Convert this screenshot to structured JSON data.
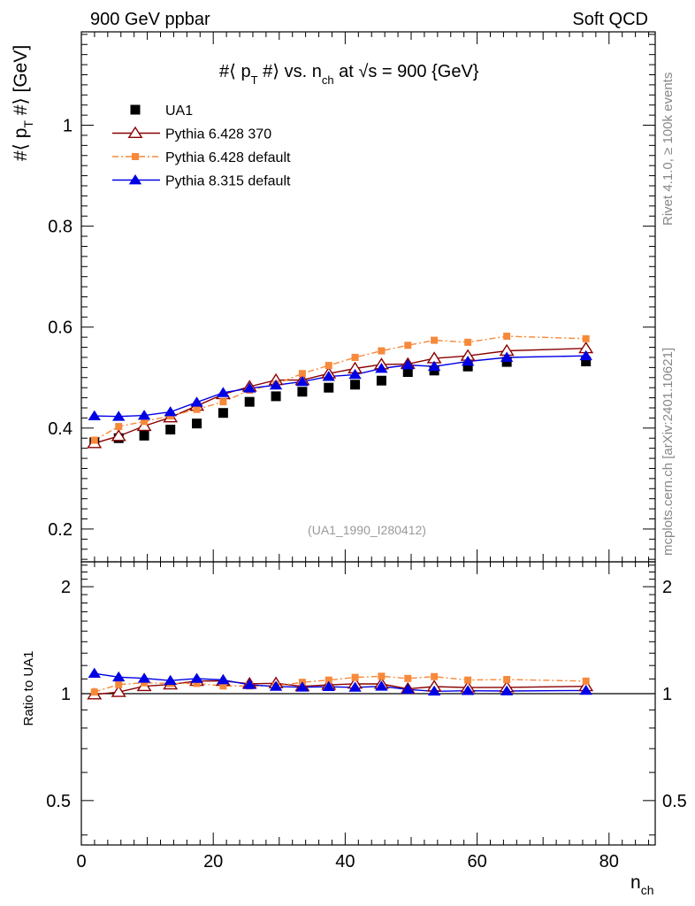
{
  "header": {
    "left": "900 GeV ppbar",
    "right": "Soft QCD"
  },
  "side_labels": {
    "rivet": "Rivet 4.1.0, ≥ 100k events",
    "mcplots": "mcplots.cern.ch [arXiv:2401.10621]"
  },
  "chart_data": {
    "type": "line",
    "title": "#⟨ p_T #⟩ vs. n_ch at √s = 900 {GeV}",
    "title_parts": {
      "a": "#⟨ p",
      "b": "T",
      "c": " #⟩ vs. n",
      "d": "ch",
      "e": " at ",
      "f": "√",
      "g": "s = 900 {GeV}"
    },
    "ylabel_parts": {
      "a": "#⟨ p",
      "b": "T",
      "c": " #⟩ [GeV]"
    },
    "xlabel_parts": {
      "a": "n",
      "b": "ch"
    },
    "ratio_ylabel": "Ratio to UA1",
    "watermark": "(UA1_1990_I280412)",
    "xlim": [
      0,
      87
    ],
    "ylim": [
      0.135,
      1.185
    ],
    "ratio_ylim": [
      0.375,
      2.35
    ],
    "x_ticks": [
      0,
      20,
      40,
      60,
      80
    ],
    "y_ticks": [
      0.2,
      0.4,
      0.6,
      0.8,
      1
    ],
    "ratio_ticks": [
      0.5,
      1,
      2
    ],
    "x": [
      1.98,
      5.66,
      9.53,
      13.5,
      17.5,
      21.5,
      25.5,
      29.5,
      33.5,
      37.5,
      41.5,
      45.5,
      49.5,
      53.5,
      58.6,
      64.5,
      76.5
    ],
    "series": [
      {
        "name": "UA1",
        "type": "data",
        "color": "#000000",
        "values": [
          0.372,
          0.38,
          0.385,
          0.397,
          0.409,
          0.43,
          0.452,
          0.463,
          0.472,
          0.48,
          0.486,
          0.494,
          0.511,
          0.514,
          0.522,
          0.531,
          0.532
        ]
      },
      {
        "name": "Pythia 6.428 370",
        "type": "mc",
        "color": "#8b0000",
        "marker": "triangle-open",
        "dash": "",
        "values": [
          0.37,
          0.384,
          0.404,
          0.421,
          0.444,
          0.467,
          0.482,
          0.495,
          0.495,
          0.508,
          0.518,
          0.526,
          0.527,
          0.538,
          0.543,
          0.553,
          0.558
        ]
      },
      {
        "name": "Pythia 6.428 default",
        "type": "mc",
        "color": "#f7893a",
        "marker": "square",
        "dash": "7,3,2,3",
        "values": [
          0.376,
          0.403,
          0.413,
          0.424,
          0.437,
          0.452,
          0.475,
          0.487,
          0.508,
          0.524,
          0.54,
          0.553,
          0.564,
          0.574,
          0.57,
          0.582,
          0.577
        ]
      },
      {
        "name": "Pythia 8.315 default",
        "type": "mc",
        "color": "#0000e6",
        "marker": "triangle",
        "dash": "",
        "values": [
          0.424,
          0.423,
          0.425,
          0.432,
          0.451,
          0.47,
          0.479,
          0.485,
          0.492,
          0.502,
          0.506,
          0.518,
          0.525,
          0.522,
          0.532,
          0.54,
          0.543
        ]
      }
    ]
  }
}
